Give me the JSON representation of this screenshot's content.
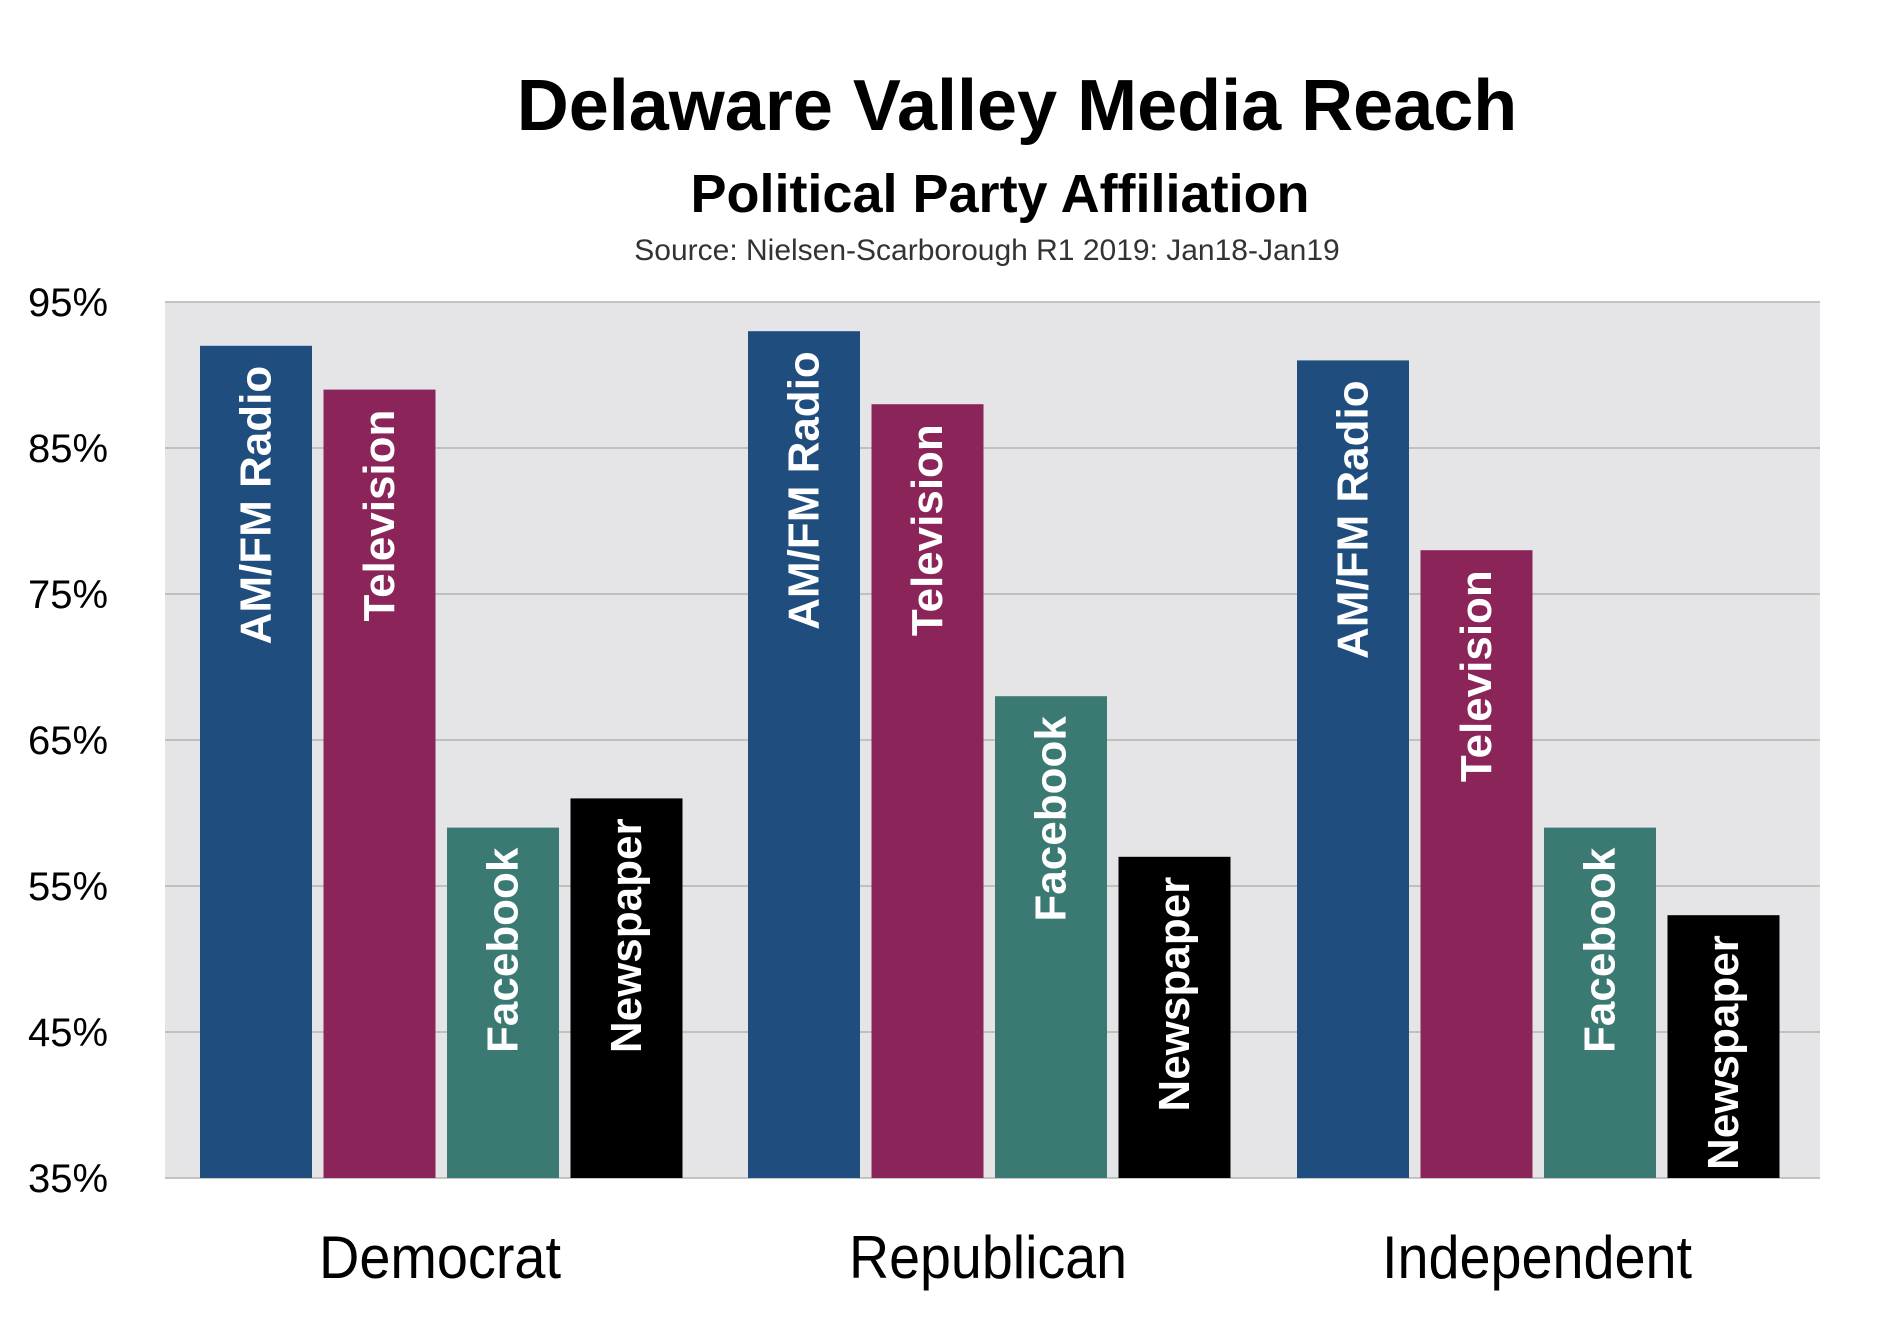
{
  "chart_data": {
    "type": "bar",
    "title": "Delaware Valley Media Reach",
    "subtitle": "Political Party Affiliation",
    "source": "Source: Nielsen-Scarborough R1 2019: Jan18-Jan19",
    "categories": [
      "Democrat",
      "Republican",
      "Independent"
    ],
    "series": [
      {
        "name": "AM/FM Radio",
        "color": "#1f4e7e",
        "values": [
          92,
          93,
          91
        ]
      },
      {
        "name": "Television",
        "color": "#8b2559",
        "values": [
          89,
          88,
          78
        ]
      },
      {
        "name": "Facebook",
        "color": "#3a7a73",
        "values": [
          59,
          68,
          59
        ]
      },
      {
        "name": "Newspaper",
        "color": "#000000",
        "values": [
          61,
          57,
          53
        ]
      }
    ],
    "ylim": [
      35,
      95
    ],
    "yticks": [
      35,
      45,
      55,
      65,
      75,
      85,
      95
    ],
    "ytick_labels": [
      "35%",
      "45%",
      "55%",
      "65%",
      "75%",
      "85%",
      "95%"
    ],
    "grid": true,
    "plot_background": "#e5e5e8",
    "legend": "none (series names printed inside bars)"
  }
}
